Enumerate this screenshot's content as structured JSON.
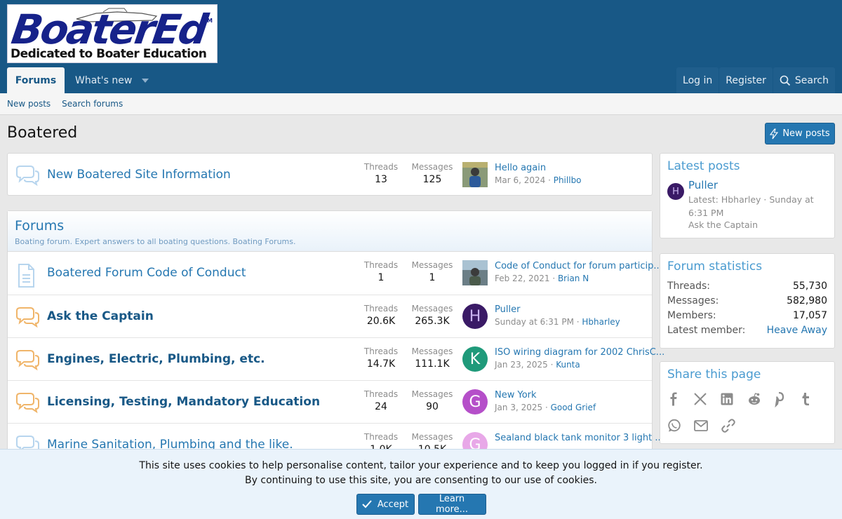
{
  "header": {
    "logo_text": "BoaterEd",
    "logo_tm": "TM",
    "logo_tagline": "Dedicated to Boater Education"
  },
  "nav": {
    "tabs": [
      {
        "label": "Forums",
        "active": true
      },
      {
        "label": "What's new",
        "active": false
      }
    ],
    "login_label": "Log in",
    "register_label": "Register",
    "search_label": "Search"
  },
  "subnav": {
    "items": [
      "New posts",
      "Search forums"
    ]
  },
  "page": {
    "title": "Boatered",
    "new_posts_button": "New posts"
  },
  "labels": {
    "threads": "Threads",
    "messages": "Messages"
  },
  "top_forum": {
    "title": "New Boatered Site Information",
    "threads": "13",
    "messages": "125",
    "last_title": "Hello again",
    "last_date": "Mar 6, 2024",
    "last_user": "Phillbo"
  },
  "category": {
    "title": "Forums",
    "description": "Boating forum. Expert answers to all boating questions. Boating Forums."
  },
  "forums": [
    {
      "title": "Boatered Forum Code of Conduct",
      "threads": "1",
      "messages": "1",
      "last_title": "Code of Conduct for forum particip...",
      "last_date": "Feb 22, 2021",
      "last_user": "Brian N",
      "avatar_letter": "",
      "avatar_color": "#7a8a95",
      "icon": "document-icon",
      "bold": false
    },
    {
      "title": "Ask the Captain",
      "threads": "20.6K",
      "messages": "265.3K",
      "last_title": "Puller",
      "last_date": "Sunday at 6:31 PM",
      "last_user": "Hbharley",
      "avatar_letter": "H",
      "avatar_color": "#3a1a66",
      "icon": "chat-bubbles-icon",
      "bold": true
    },
    {
      "title": "Engines, Electric, Plumbing, etc.",
      "threads": "14.7K",
      "messages": "111.1K",
      "last_title": "ISO wiring diagram for 2002 ChrisC...",
      "last_date": "Jan 23, 2025",
      "last_user": "Kunta",
      "avatar_letter": "K",
      "avatar_color": "#1f9a7a",
      "icon": "chat-bubbles-icon",
      "bold": true
    },
    {
      "title": "Licensing, Testing, Mandatory Education",
      "threads": "24",
      "messages": "90",
      "last_title": "New York",
      "last_date": "Jan 3, 2025",
      "last_user": "Good Grief",
      "avatar_letter": "G",
      "avatar_color": "#b54fc9",
      "icon": "chat-bubbles-icon",
      "bold": true
    },
    {
      "title": "Marine Sanitation, Plumbing and the like.",
      "threads": "1.0K",
      "messages": "10.5K",
      "last_title": "Sealand black tank monitor 3 light ...",
      "last_date": "",
      "last_user": "",
      "avatar_letter": "G",
      "avatar_color": "#e8a8e8",
      "icon": "chat-bubbles-icon",
      "bold": false
    }
  ],
  "sidebar": {
    "latest_posts": {
      "title": "Latest posts",
      "avatar_letter": "H",
      "post_title": "Puller",
      "meta": "Latest: Hbharley · Sunday at 6:31 PM",
      "forum": "Ask the Captain"
    },
    "forum_stats": {
      "title": "Forum statistics",
      "rows": [
        {
          "k": "Threads:",
          "v": "55,730"
        },
        {
          "k": "Messages:",
          "v": "582,980"
        },
        {
          "k": "Members:",
          "v": "17,057"
        },
        {
          "k": "Latest member:",
          "v": "Heave Away"
        }
      ]
    },
    "share": {
      "title": "Share this page",
      "icons": [
        "facebook-icon",
        "x-icon",
        "linkedin-icon",
        "reddit-icon",
        "pinterest-icon",
        "tumblr-icon",
        "whatsapp-icon",
        "email-icon",
        "link-icon"
      ]
    }
  },
  "cookie": {
    "line1": "This site uses cookies to help personalise content, tailor your experience and to keep you logged in if you register.",
    "line2": "By continuing to use this site, you are consenting to our use of cookies.",
    "accept_label": "Accept",
    "learn_more_label": "Learn more..."
  }
}
